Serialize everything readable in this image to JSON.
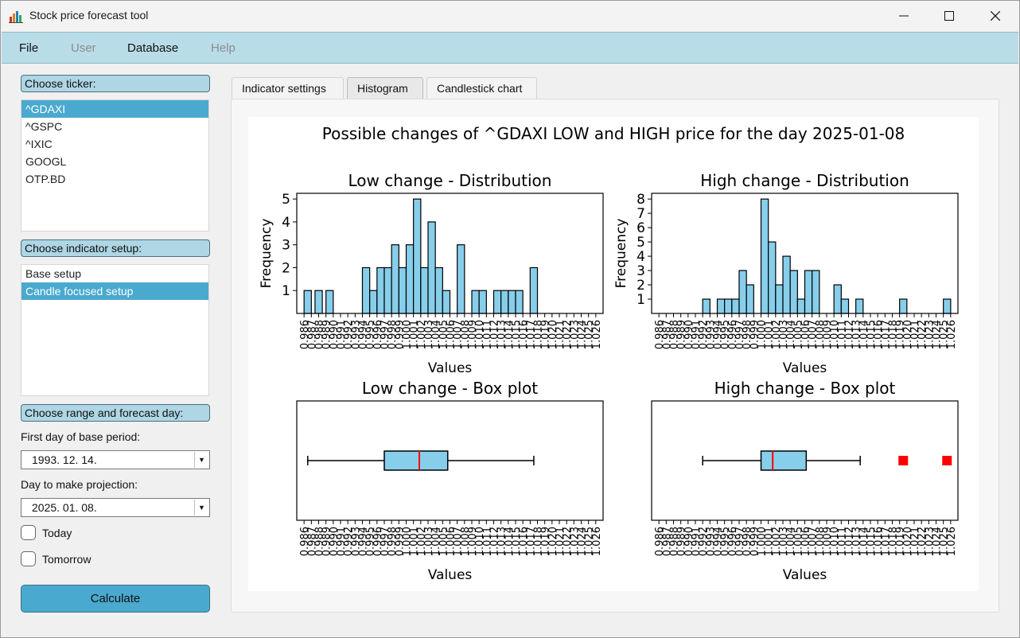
{
  "window": {
    "title": "Stock price forecast tool",
    "minimize_icon": "minimize-icon",
    "maximize_icon": "maximize-icon",
    "close_icon": "close-icon"
  },
  "menubar": {
    "items": [
      "File",
      "User",
      "Database",
      "Help"
    ],
    "disabled": [
      "User",
      "Help"
    ]
  },
  "sidebar": {
    "ticker_label": "Choose ticker:",
    "tickers": [
      "^GDAXI",
      "^GSPC",
      "^IXIC",
      "GOOGL",
      "OTP.BD"
    ],
    "selected_ticker": "^GDAXI",
    "indicator_label": "Choose indicator setup:",
    "indicator_setups": [
      "Base setup",
      "Candle focused setup"
    ],
    "selected_setup": "Candle focused setup",
    "range_label": "Choose range and forecast day:",
    "first_day_label": "First day of base period:",
    "first_day_value": "1993. 12. 14.",
    "projection_label": "Day to make projection:",
    "projection_value": "2025. 01. 08.",
    "today_label": "Today",
    "tomorrow_label": "Tomorrow",
    "calculate_label": "Calculate"
  },
  "tabs": {
    "items": [
      "Indicator settings",
      "Histogram",
      "Candlestick chart"
    ],
    "active": "Histogram"
  },
  "colors": {
    "menubar": "#b9dde8",
    "accent": "#4aa9cf",
    "bar_fill": "#87ceeb",
    "median": "#ff0000",
    "outlier": "#ff0000"
  },
  "chart_data": [
    {
      "type": "bar",
      "suptitle": "Possible changes of ^GDAXI LOW and HIGH price for the day 2025-01-08",
      "title": "Low change - Distribution",
      "xlabel": "Values",
      "ylabel": "Frequency",
      "x": [
        0.9865,
        0.988,
        0.9895,
        0.9945,
        0.9955,
        0.9965,
        0.9975,
        0.9985,
        0.9995,
        1.0005,
        1.0015,
        1.0025,
        1.0035,
        1.0045,
        1.0055,
        1.0075,
        1.0095,
        1.0105,
        1.0125,
        1.0135,
        1.0145,
        1.0155,
        1.0175
      ],
      "values": [
        1,
        1,
        1,
        2,
        1,
        2,
        2,
        3,
        2,
        3,
        5,
        2,
        4,
        2,
        1,
        3,
        1,
        1,
        1,
        1,
        1,
        1,
        2
      ],
      "bin_width": 0.001,
      "xlim": [
        0.985,
        1.027
      ],
      "ylim": [
        0,
        5.25
      ],
      "yticks": [
        1,
        2,
        3,
        4,
        5
      ]
    },
    {
      "type": "bar",
      "title": "High change - Distribution",
      "xlabel": "Values",
      "ylabel": "Frequency",
      "x": [
        0.9925,
        0.9945,
        0.9955,
        0.9965,
        0.9975,
        0.9985,
        1.0005,
        1.0015,
        1.0025,
        1.0035,
        1.0045,
        1.0055,
        1.0065,
        1.0075,
        1.0105,
        1.0115,
        1.0135,
        1.0195,
        1.0255
      ],
      "values": [
        1,
        1,
        1,
        1,
        3,
        2,
        8,
        5,
        2,
        4,
        3,
        1,
        3,
        3,
        2,
        1,
        1,
        1,
        1
      ],
      "bin_width": 0.001,
      "xlim": [
        0.985,
        1.027
      ],
      "ylim": [
        0,
        8.4
      ],
      "yticks": [
        1,
        2,
        3,
        4,
        5,
        6,
        7,
        8
      ]
    },
    {
      "type": "box",
      "title": "Low change - Box plot",
      "xlabel": "Values",
      "whisker_low": 0.9865,
      "q1": 0.997,
      "median": 1.0018,
      "q3": 1.0057,
      "whisker_high": 1.0175,
      "outliers": [],
      "xlim": [
        0.985,
        1.027
      ]
    },
    {
      "type": "box",
      "title": "High change - Box plot",
      "xlabel": "Values",
      "whisker_low": 0.992,
      "q1": 1.0,
      "median": 1.0016,
      "q3": 1.0062,
      "whisker_high": 1.0136,
      "outliers": [
        1.0195,
        1.0255
      ],
      "xlim": [
        0.985,
        1.027
      ]
    }
  ],
  "x_tick_labels": [
    "0.986",
    "0.987",
    "0.988",
    "0.989",
    "0.990",
    "0.991",
    "0.992",
    "0.993",
    "0.994",
    "0.995",
    "0.996",
    "0.997",
    "0.998",
    "0.999",
    "1.000",
    "1.001",
    "1.002",
    "1.003",
    "1.004",
    "1.005",
    "1.006",
    "1.007",
    "1.008",
    "1.009",
    "1.010",
    "1.011",
    "1.012",
    "1.013",
    "1.014",
    "1.015",
    "1.016",
    "1.017",
    "1.018",
    "1.019",
    "1.020",
    "1.021",
    "1.022",
    "1.023",
    "1.024",
    "1.025",
    "1.026"
  ]
}
